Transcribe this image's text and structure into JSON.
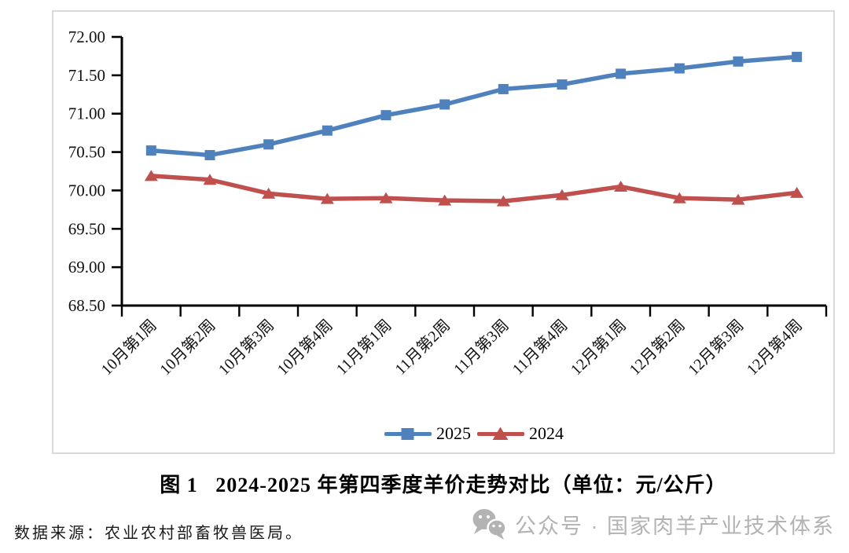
{
  "chart_data": {
    "type": "line",
    "title": "图 1   2024-2025 年第四季度羊价走势对比（单位：元/公斤）",
    "categories": [
      "10月第1周",
      "10月第2周",
      "10月第3周",
      "10月第4周",
      "11月第1周",
      "11月第2周",
      "11月第3周",
      "11月第4周",
      "12月第1周",
      "12月第2周",
      "12月第3周",
      "12月第4周"
    ],
    "series": [
      {
        "name": "2025",
        "color": "#4F81BD",
        "marker": "square",
        "values": [
          70.52,
          70.46,
          70.6,
          70.78,
          70.98,
          71.12,
          71.32,
          71.38,
          71.52,
          71.59,
          71.68,
          71.74
        ]
      },
      {
        "name": "2024",
        "color": "#C0504D",
        "marker": "triangle",
        "values": [
          70.19,
          70.14,
          69.96,
          69.89,
          69.9,
          69.87,
          69.86,
          69.94,
          70.05,
          69.9,
          69.88,
          69.97
        ]
      }
    ],
    "ylim": [
      68.5,
      72.0
    ],
    "ytick_step": 0.5,
    "ytick_labels": [
      "72.00",
      "71.50",
      "71.00",
      "70.50",
      "70.00",
      "69.50",
      "69.00",
      "68.50"
    ],
    "xlabel": "",
    "ylabel": "",
    "grid": false,
    "legend_position": "bottom-center"
  },
  "source": {
    "text": "数据来源：农业农村部畜牧兽医局。"
  },
  "watermark": {
    "icon": "wechat-icon",
    "text": "公众号 · 国家肉羊产业技术体系",
    "color": "#b3b3b3"
  }
}
